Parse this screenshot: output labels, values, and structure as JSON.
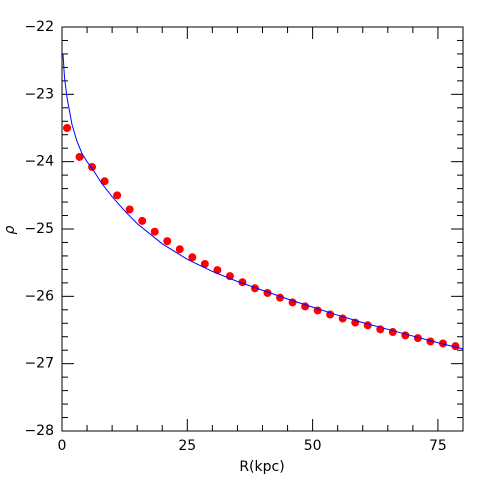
{
  "chart_data": {
    "type": "scatter",
    "xlabel": "R(kpc)",
    "ylabel": "ρ",
    "xlim": [
      0,
      80
    ],
    "ylim": [
      -28,
      -22
    ],
    "xticks": [
      0,
      25,
      50,
      75
    ],
    "xminorticks": [
      5,
      10,
      15,
      20,
      30,
      35,
      40,
      45,
      55,
      60,
      65,
      70
    ],
    "yticks": [
      {
        "value": -28,
        "label": "−28"
      },
      {
        "value": -27,
        "label": "−27"
      },
      {
        "value": -26,
        "label": "−26"
      },
      {
        "value": -25,
        "label": "−25"
      },
      {
        "value": -24,
        "label": "−24"
      },
      {
        "value": -23,
        "label": "−23"
      },
      {
        "value": -22,
        "label": "−22"
      }
    ],
    "yminorticks": [
      -27.8,
      -27.6,
      -27.4,
      -27.2,
      -26.8,
      -26.6,
      -26.4,
      -26.2,
      -25.8,
      -25.6,
      -25.4,
      -25.2,
      -24.8,
      -24.6,
      -24.4,
      -24.2,
      -23.8,
      -23.6,
      -23.4,
      -23.2,
      -22.8,
      -22.6,
      -22.4,
      -22.2
    ],
    "series": [
      {
        "type": "scatter",
        "color": "#ff0000",
        "x": [
          1,
          3.5,
          6,
          8.5,
          11,
          13.5,
          16,
          18.5,
          21,
          23.5,
          26,
          28.5,
          31,
          33.5,
          36,
          38.5,
          41,
          43.5,
          46,
          48.5,
          51,
          53.5,
          56,
          58.5,
          61,
          63.5,
          66,
          68.5,
          71,
          73.5,
          76,
          78.5
        ],
        "values": [
          -23.5,
          -23.93,
          -24.08,
          -24.29,
          -24.5,
          -24.71,
          -24.88,
          -25.04,
          -25.18,
          -25.3,
          -25.42,
          -25.52,
          -25.61,
          -25.7,
          -25.79,
          -25.88,
          -25.95,
          -26.02,
          -26.09,
          -26.15,
          -26.21,
          -26.27,
          -26.33,
          -26.39,
          -26.43,
          -26.49,
          -26.53,
          -26.58,
          -26.62,
          -26.67,
          -26.7,
          -26.74
        ]
      },
      {
        "type": "line",
        "color": "#0000ff",
        "x": [
          0.2,
          0.5,
          1,
          2,
          3,
          4,
          5,
          6,
          8,
          10,
          12.5,
          15,
          20,
          25,
          30,
          35,
          40,
          45,
          50,
          55,
          60,
          65,
          70,
          75,
          80
        ],
        "values": [
          -22.4,
          -22.75,
          -23.05,
          -23.45,
          -23.7,
          -23.88,
          -24.0,
          -24.1,
          -24.33,
          -24.52,
          -24.73,
          -24.92,
          -25.22,
          -25.45,
          -25.63,
          -25.78,
          -25.91,
          -26.04,
          -26.16,
          -26.28,
          -26.39,
          -26.49,
          -26.59,
          -26.69,
          -26.78
        ]
      }
    ]
  }
}
